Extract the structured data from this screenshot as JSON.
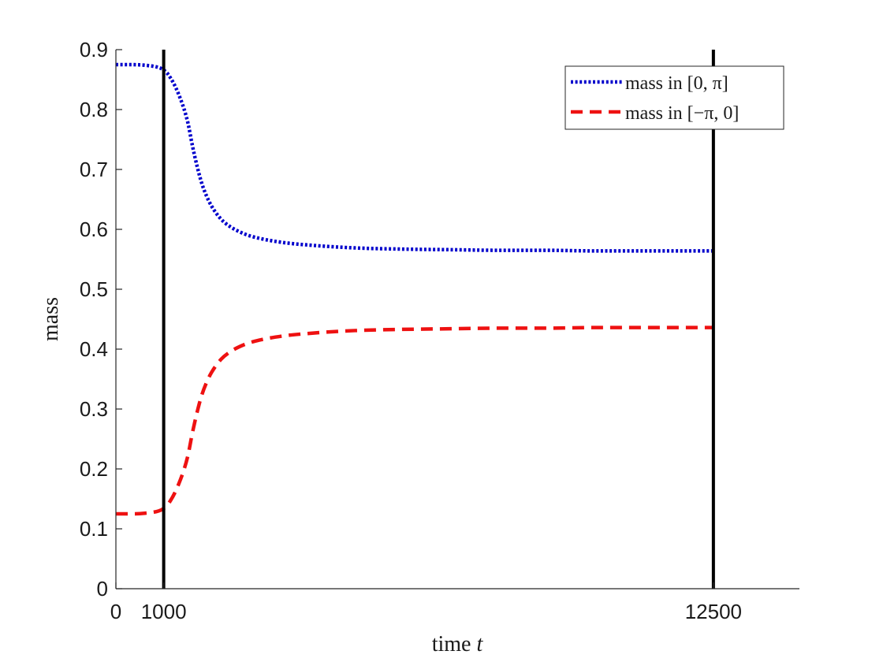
{
  "chart_data": {
    "type": "line",
    "xlabel": "time t",
    "ylabel": "mass",
    "xlim": [
      0,
      14300
    ],
    "ylim": [
      0,
      0.9
    ],
    "x_ticks": [
      {
        "value": 0,
        "label": "0"
      },
      {
        "value": 1000,
        "label": "1000"
      },
      {
        "value": 12500,
        "label": "12500"
      }
    ],
    "y_ticks": [
      {
        "value": 0,
        "label": "0"
      },
      {
        "value": 0.1,
        "label": "0.1"
      },
      {
        "value": 0.2,
        "label": "0.2"
      },
      {
        "value": 0.3,
        "label": "0.3"
      },
      {
        "value": 0.4,
        "label": "0.4"
      },
      {
        "value": 0.5,
        "label": "0.5"
      },
      {
        "value": 0.6,
        "label": "0.6"
      },
      {
        "value": 0.7,
        "label": "0.7"
      },
      {
        "value": 0.8,
        "label": "0.8"
      },
      {
        "value": 0.9,
        "label": "0.9"
      }
    ],
    "vertical_lines": [
      1000,
      12500
    ],
    "grid": false,
    "legend_position": "top-right",
    "series": [
      {
        "name": "mass in [0, π]",
        "color": "#0000cc",
        "style": "dotted",
        "x": [
          0,
          300,
          600,
          900,
          1000,
          1100,
          1300,
          1500,
          1600,
          1700,
          1800,
          1900,
          2000,
          2200,
          2400,
          2700,
          3000,
          3500,
          4000,
          5000,
          6000,
          7000,
          8000,
          9000,
          10000,
          11000,
          12000,
          12500
        ],
        "y": [
          0.875,
          0.875,
          0.874,
          0.87,
          0.866,
          0.858,
          0.828,
          0.78,
          0.74,
          0.705,
          0.676,
          0.655,
          0.639,
          0.617,
          0.604,
          0.592,
          0.585,
          0.578,
          0.574,
          0.569,
          0.567,
          0.566,
          0.565,
          0.565,
          0.564,
          0.564,
          0.564,
          0.564
        ]
      },
      {
        "name": "mass in [−π, 0]",
        "color": "#ee1111",
        "style": "dashed",
        "x": [
          0,
          300,
          600,
          900,
          1000,
          1100,
          1300,
          1500,
          1600,
          1700,
          1800,
          1900,
          2000,
          2200,
          2400,
          2700,
          3000,
          3500,
          4000,
          5000,
          6000,
          7000,
          8000,
          9000,
          10000,
          11000,
          12000,
          12500
        ],
        "y": [
          0.125,
          0.125,
          0.126,
          0.13,
          0.134,
          0.142,
          0.172,
          0.22,
          0.26,
          0.295,
          0.324,
          0.345,
          0.361,
          0.383,
          0.396,
          0.408,
          0.415,
          0.422,
          0.426,
          0.431,
          0.433,
          0.434,
          0.435,
          0.435,
          0.436,
          0.436,
          0.436,
          0.436
        ]
      }
    ]
  }
}
